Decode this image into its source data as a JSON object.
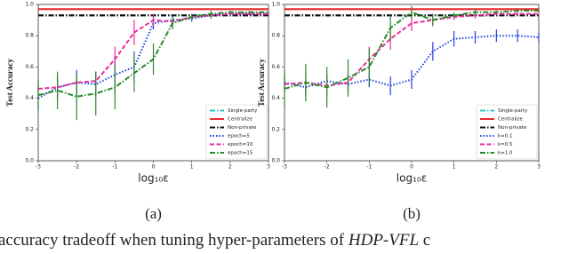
{
  "chart_data": [
    {
      "type": "line",
      "label": "(a)",
      "xlabel": "log₁₀ε",
      "ylabel": "Test Accuracy",
      "xlim": [
        -3,
        3
      ],
      "ylim": [
        0,
        1.0
      ],
      "xticks": [
        -3,
        -2,
        -1,
        0,
        1,
        2,
        3
      ],
      "yticks": [
        {
          "value": 0,
          "label": "0.0"
        },
        0.2,
        0.4,
        0.6,
        0.8,
        {
          "value": 1,
          "label": "1.0"
        }
      ],
      "legend": "lower right",
      "x": [
        -3,
        -2.5,
        -2,
        -1.5,
        -1,
        -0.5,
        0,
        0.5,
        1,
        1.5,
        2,
        2.5,
        3
      ],
      "series": [
        {
          "name": "Single-party",
          "color": "#2ec4c4",
          "linestyle": "dashdot",
          "x": [
            -3,
            3
          ],
          "values": [
            0.93,
            0.93
          ]
        },
        {
          "name": "Centralize",
          "color": "#e8262a",
          "linestyle": "solid",
          "x": [
            -3,
            3
          ],
          "values": [
            0.97,
            0.97
          ]
        },
        {
          "name": "Non-private",
          "color": "#111111",
          "linestyle": "dashdot",
          "x": [
            -3,
            3
          ],
          "values": [
            0.93,
            0.93
          ]
        },
        {
          "name": "epoch=5",
          "color": "#1f3fe0",
          "linestyle": "dotted",
          "values": [
            0.4,
            0.47,
            0.5,
            0.49,
            0.55,
            0.6,
            0.88,
            0.9,
            0.91,
            0.93,
            0.94,
            0.94,
            0.94
          ],
          "errors": [
            0.08,
            0.07,
            0.08,
            0.08,
            0.12,
            0.1,
            0.04,
            0.03,
            0.02,
            0.02,
            0.01,
            0.01,
            0.01
          ]
        },
        {
          "name": "epoch=10",
          "color": "#ee2c9e",
          "linestyle": "dashed",
          "values": [
            0.46,
            0.47,
            0.5,
            0.51,
            0.65,
            0.82,
            0.9,
            0.89,
            0.92,
            0.93,
            0.94,
            0.94,
            0.94
          ],
          "errors": [
            0.06,
            0.07,
            0.06,
            0.06,
            0.08,
            0.08,
            0.04,
            0.03,
            0.02,
            0.02,
            0.01,
            0.01,
            0.01
          ]
        },
        {
          "name": "epoch=15",
          "color": "#2a8a2a",
          "linestyle": "dashdot",
          "values": [
            0.42,
            0.45,
            0.41,
            0.43,
            0.47,
            0.56,
            0.65,
            0.88,
            0.92,
            0.94,
            0.95,
            0.95,
            0.95
          ],
          "errors": [
            0.1,
            0.12,
            0.15,
            0.14,
            0.14,
            0.12,
            0.1,
            0.04,
            0.02,
            0.02,
            0.01,
            0.01,
            0.01
          ]
        }
      ]
    },
    {
      "type": "line",
      "label": "(b)",
      "xlabel": "log₁₀ε",
      "ylabel": "Test Accuracy",
      "xlim": [
        -3,
        3
      ],
      "ylim": [
        0,
        1.0
      ],
      "xticks": [
        -3,
        -2,
        -1,
        0,
        1,
        2,
        3
      ],
      "yticks": [
        {
          "value": 0,
          "label": "0.0"
        },
        0.2,
        0.4,
        0.6,
        0.8,
        {
          "value": 1,
          "label": "1.0"
        }
      ],
      "legend": "lower right",
      "x": [
        -3,
        -2.5,
        -2,
        -1.5,
        -1,
        -0.5,
        0,
        0.5,
        1,
        1.5,
        2,
        2.5,
        3
      ],
      "series": [
        {
          "name": "Single-party",
          "color": "#2ec4c4",
          "linestyle": "dashdot",
          "x": [
            -3,
            3
          ],
          "values": [
            0.93,
            0.93
          ]
        },
        {
          "name": "Centralize",
          "color": "#e8262a",
          "linestyle": "solid",
          "x": [
            -3,
            3
          ],
          "values": [
            0.97,
            0.97
          ]
        },
        {
          "name": "Non-private",
          "color": "#111111",
          "linestyle": "dashdot",
          "x": [
            -3,
            3
          ],
          "values": [
            0.93,
            0.93
          ]
        },
        {
          "name": "k=0.1",
          "color": "#1f3fe0",
          "linestyle": "dotted",
          "values": [
            0.5,
            0.47,
            0.51,
            0.49,
            0.52,
            0.48,
            0.52,
            0.7,
            0.78,
            0.79,
            0.8,
            0.8,
            0.79
          ],
          "errors": [
            0.04,
            0.05,
            0.04,
            0.06,
            0.05,
            0.06,
            0.06,
            0.06,
            0.05,
            0.04,
            0.04,
            0.04,
            0.03
          ]
        },
        {
          "name": "k=0.5",
          "color": "#ee2c9e",
          "linestyle": "dashed",
          "values": [
            0.49,
            0.5,
            0.48,
            0.5,
            0.65,
            0.78,
            0.88,
            0.9,
            0.92,
            0.93,
            0.94,
            0.94,
            0.94
          ],
          "errors": [
            0.06,
            0.06,
            0.07,
            0.06,
            0.08,
            0.07,
            0.05,
            0.03,
            0.02,
            0.02,
            0.01,
            0.01,
            0.01
          ]
        },
        {
          "name": "k=1.0",
          "color": "#2a8a2a",
          "linestyle": "dashdot",
          "values": [
            0.46,
            0.5,
            0.47,
            0.53,
            0.6,
            0.85,
            0.95,
            0.9,
            0.93,
            0.95,
            0.95,
            0.96,
            0.96
          ],
          "errors": [
            0.12,
            0.12,
            0.13,
            0.12,
            0.12,
            0.08,
            0.04,
            0.04,
            0.02,
            0.02,
            0.01,
            0.01,
            0.01
          ]
        }
      ]
    }
  ],
  "caption": {
    "text": "accuracy tradeoff when tuning hyper-parameters of",
    "emphasis": "HDP-VFL",
    "tail": "c"
  }
}
